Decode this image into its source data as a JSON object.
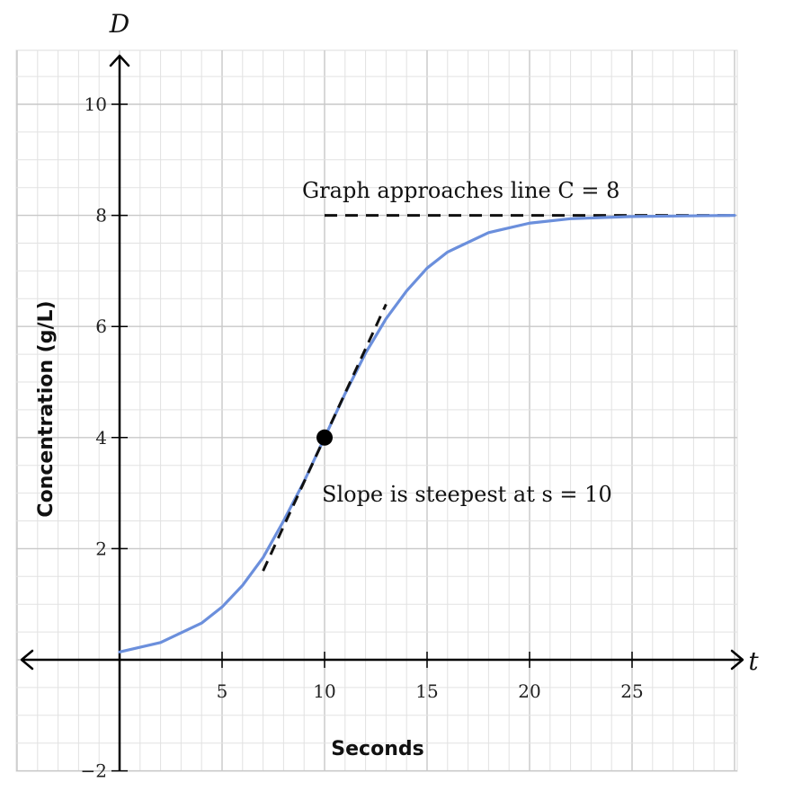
{
  "chart_data": {
    "type": "line",
    "x_variable": "t",
    "y_variable": "D",
    "xlabel": "Seconds",
    "ylabel": "Concentration (g/L)",
    "xlim": [
      -5,
      30
    ],
    "ylim": [
      -2,
      11
    ],
    "x_ticks": [
      5,
      10,
      15,
      20,
      25
    ],
    "x_tick_labels": [
      "5",
      "10",
      "15",
      "20",
      "25"
    ],
    "y_ticks": [
      -2,
      2,
      4,
      6,
      8,
      10
    ],
    "y_tick_labels": [
      "−2",
      "2",
      "4",
      "6",
      "8",
      "10"
    ],
    "grid": true,
    "grid_minor_step": 1,
    "series": [
      {
        "color": "#6b8fdc",
        "formula": "8 / (1 + e^(-0.4(t-10)))",
        "points": [
          {
            "t": 0,
            "D": 0.14
          },
          {
            "t": 2,
            "D": 0.31
          },
          {
            "t": 4,
            "D": 0.66
          },
          {
            "t": 5,
            "D": 0.95
          },
          {
            "t": 6,
            "D": 1.34
          },
          {
            "t": 7,
            "D": 1.84
          },
          {
            "t": 8,
            "D": 2.5
          },
          {
            "t": 9,
            "D": 3.21
          },
          {
            "t": 10,
            "D": 4.0
          },
          {
            "t": 11,
            "D": 4.79
          },
          {
            "t": 12,
            "D": 5.52
          },
          {
            "t": 13,
            "D": 6.14
          },
          {
            "t": 14,
            "D": 6.64
          },
          {
            "t": 15,
            "D": 7.05
          },
          {
            "t": 16,
            "D": 7.34
          },
          {
            "t": 18,
            "D": 7.69
          },
          {
            "t": 20,
            "D": 7.86
          },
          {
            "t": 22,
            "D": 7.94
          },
          {
            "t": 25,
            "D": 7.98
          },
          {
            "t": 30,
            "D": 8.0
          }
        ]
      }
    ],
    "asymptote": {
      "y": 8,
      "from_x": 10,
      "to_x": 30,
      "style": "dashed",
      "color": "#111111"
    },
    "tangent": {
      "point": {
        "t": 10,
        "D": 4
      },
      "slope": 0.8,
      "from_x": 7,
      "to_x": 13,
      "style": "dashed",
      "color": "#111111"
    },
    "marker": {
      "t": 10,
      "D": 4,
      "color": "#000000"
    },
    "annotations": {
      "asymptote_text": "Graph approaches line C = 8",
      "slope_text": "Slope is steepest at s = 10"
    }
  }
}
